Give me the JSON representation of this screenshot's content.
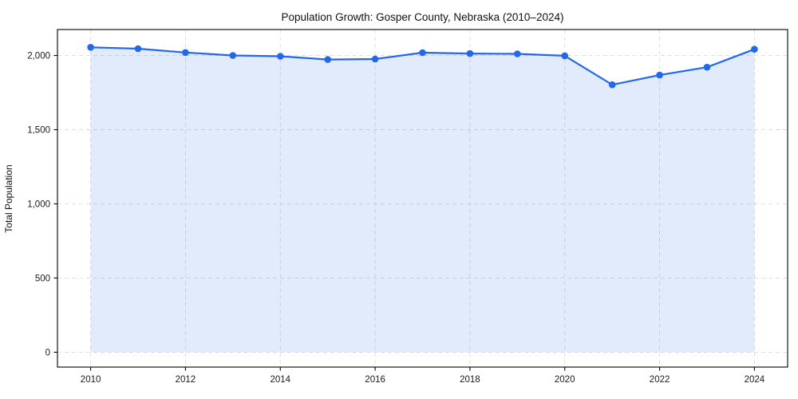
{
  "title": "Population Growth: Gosper County, Nebraska (2010–2024)",
  "chart_data": {
    "type": "line",
    "title": "Population Growth: Gosper County, Nebraska (2010–2024)",
    "xlabel": "",
    "ylabel": "Total Population",
    "x": [
      2010,
      2011,
      2012,
      2013,
      2014,
      2015,
      2016,
      2017,
      2018,
      2019,
      2020,
      2021,
      2022,
      2023,
      2024
    ],
    "series": [
      {
        "name": "Total Population",
        "values": [
          2055,
          2046,
          2020,
          2000,
          1995,
          1973,
          1976,
          2019,
          2013,
          2011,
          1998,
          1803,
          1868,
          1921,
          2042
        ]
      }
    ],
    "xticks": [
      2010,
      2012,
      2014,
      2016,
      2018,
      2020,
      2022,
      2024
    ],
    "xtick_labels": [
      "2010",
      "2012",
      "2014",
      "2016",
      "2018",
      "2020",
      "2022",
      "2024"
    ],
    "yticks": [
      0,
      500,
      1000,
      1500,
      2000
    ],
    "ytick_labels": [
      "0",
      "500",
      "1,000",
      "1,500",
      "2,000"
    ],
    "xlim": [
      2009.3,
      2024.7
    ],
    "ylim": [
      -100,
      2175
    ],
    "grid": true,
    "grid_style": "dashed",
    "legend": "none",
    "marker": "circle",
    "colors": {
      "line": "#2268e8",
      "marker": "#2268e8",
      "area_fill": "rgba(34, 104, 232, 0.13)",
      "grid": "#cfcfcf",
      "spine": "#000000",
      "tick_label": "#1a1a1a",
      "background": "#ffffff"
    }
  }
}
